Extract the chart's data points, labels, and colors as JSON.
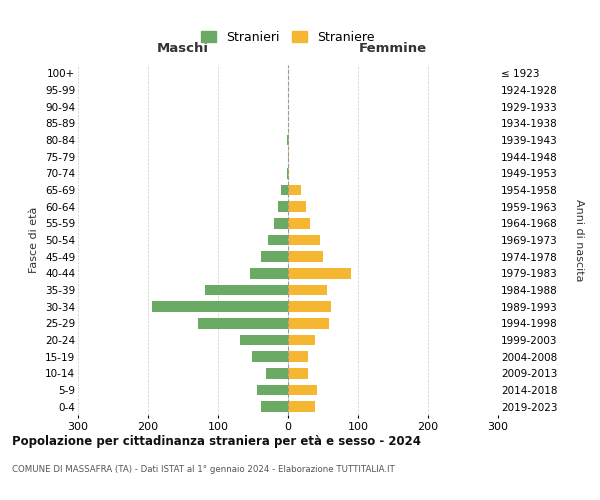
{
  "age_groups": [
    "100+",
    "95-99",
    "90-94",
    "85-89",
    "80-84",
    "75-79",
    "70-74",
    "65-69",
    "60-64",
    "55-59",
    "50-54",
    "45-49",
    "40-44",
    "35-39",
    "30-34",
    "25-29",
    "20-24",
    "15-19",
    "10-14",
    "5-9",
    "0-4"
  ],
  "birth_years": [
    "≤ 1923",
    "1924-1928",
    "1929-1933",
    "1934-1938",
    "1939-1943",
    "1944-1948",
    "1949-1953",
    "1954-1958",
    "1959-1963",
    "1964-1968",
    "1969-1973",
    "1974-1978",
    "1979-1983",
    "1984-1988",
    "1989-1993",
    "1994-1998",
    "1999-2003",
    "2004-2008",
    "2009-2013",
    "2014-2018",
    "2019-2023"
  ],
  "maschi": [
    0,
    0,
    0,
    0,
    2,
    0,
    2,
    10,
    14,
    20,
    28,
    38,
    55,
    118,
    195,
    128,
    68,
    52,
    32,
    45,
    38
  ],
  "femmine": [
    0,
    0,
    0,
    0,
    2,
    1,
    2,
    18,
    25,
    32,
    45,
    50,
    90,
    55,
    62,
    58,
    38,
    28,
    28,
    42,
    38
  ],
  "maschi_color": "#6aaa64",
  "femmine_color": "#f5b731",
  "background_color": "#ffffff",
  "grid_color": "#cccccc",
  "title": "Popolazione per cittadinanza straniera per età e sesso - 2024",
  "subtitle": "COMUNE DI MASSAFRA (TA) - Dati ISTAT al 1° gennaio 2024 - Elaborazione TUTTITALIA.IT",
  "legend_stranieri": "Stranieri",
  "legend_straniere": "Straniere",
  "header_maschi": "Maschi",
  "header_femmine": "Femmine",
  "ylabel_left": "Fasce di età",
  "ylabel_right": "Anni di nascita",
  "xlim": 300,
  "xticks": [
    -300,
    -200,
    -100,
    0,
    100,
    200,
    300
  ],
  "xtick_labels": [
    "300",
    "200",
    "100",
    "0",
    "100",
    "200",
    "300"
  ]
}
